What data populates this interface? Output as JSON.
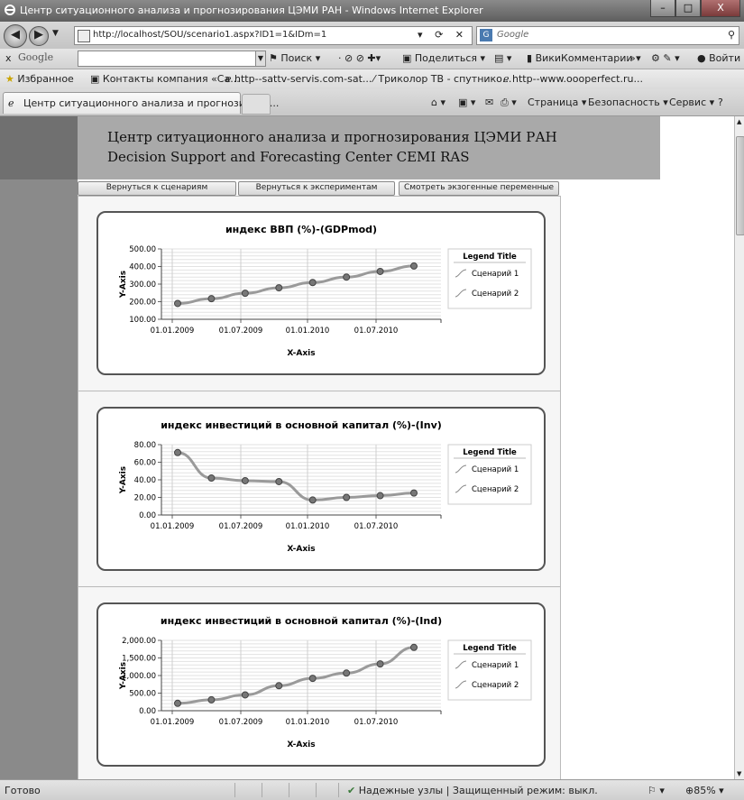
{
  "window": {
    "title": "Центр ситуационного анализа и прогнозирования ЦЭМИ РАН - Windows Internet Explorer",
    "controls": [
      "–",
      "□",
      "X"
    ]
  },
  "address": {
    "url": "http://localhost/SOU/scenario1.aspx?ID1=1&IDm=1",
    "search_placeholder": "Google"
  },
  "google_toolbar": {
    "logo": "Google",
    "search_label": "Поиск",
    "share_label": "Поделиться",
    "wiki_label": "ВикиКомментарии",
    "more_label": "»",
    "signin_label": "Войти"
  },
  "favorites": {
    "label": "Избранное",
    "items": [
      "Контакты компания «Са...",
      "http--sattv-servis.com-sat...",
      "Триколор ТВ - спутнико...",
      "http--www.oooperfect.ru..."
    ]
  },
  "tabs": {
    "active": "Центр ситуационного анализа и прогнозирова...",
    "commands": [
      "Страница",
      "Безопасность",
      "Сервис"
    ]
  },
  "page": {
    "header_line1": "Центр ситуационного анализа и прогнозирования ЦЭМИ РАН",
    "header_line2": "Decision Support and Forecasting Center CEMI RAS",
    "buttons": [
      "Вернуться к сценариям",
      "Вернуться к экспериментам",
      "Смотреть экзогенные переменные"
    ]
  },
  "chart_data": [
    {
      "type": "line",
      "title": "индекс ВВП (%)-(GDPmod)",
      "xlabel": "X-Axis",
      "ylabel": "Y-Axis",
      "x_ticks": [
        "01.01.2009",
        "01.07.2009",
        "01.01.2010",
        "01.07.2010"
      ],
      "y_ticks": [
        "500.00",
        "400.00",
        "300.00",
        "200.00",
        "100.00"
      ],
      "ylim": [
        100,
        500
      ],
      "legend_title": "Legend Title",
      "legend": [
        "Сценарий 1",
        "Сценарий 2"
      ],
      "series": [
        {
          "name": "Сценарий 1",
          "values": [
            190,
            217,
            248,
            279,
            309,
            340,
            372,
            403
          ]
        }
      ]
    },
    {
      "type": "line",
      "title": "индекс инвестиций в основной капитал (%)-(Inv)",
      "xlabel": "X-Axis",
      "ylabel": "Y-Axis",
      "x_ticks": [
        "01.01.2009",
        "01.07.2009",
        "01.01.2010",
        "01.07.2010"
      ],
      "y_ticks": [
        "80.00",
        "60.00",
        "40.00",
        "20.00",
        "0.00"
      ],
      "ylim": [
        0,
        80
      ],
      "legend_title": "Legend Title",
      "legend": [
        "Сценарий 1",
        "Сценарий 2"
      ],
      "series": [
        {
          "name": "Сценарий 1",
          "values": [
            71,
            42,
            39,
            38,
            17,
            20,
            22,
            25
          ]
        }
      ]
    },
    {
      "type": "line",
      "title": "индекс инвестиций в основной капитал (%)-(Ind)",
      "xlabel": "X-Axis",
      "ylabel": "Y-Axis",
      "x_ticks": [
        "01.01.2009",
        "01.07.2009",
        "01.01.2010",
        "01.07.2010"
      ],
      "y_ticks": [
        "2,000.00",
        "1,500.00",
        "1,000.00",
        "500.00",
        "0.00"
      ],
      "ylim": [
        0,
        2000
      ],
      "legend_title": "Legend Title",
      "legend": [
        "Сценарий 1",
        "Сценарий 2"
      ],
      "series": [
        {
          "name": "Сценарий 1",
          "values": [
            210,
            310,
            450,
            710,
            920,
            1070,
            1330,
            1800
          ]
        }
      ]
    }
  ],
  "status": {
    "left": "Готово",
    "zone": "Надежные узлы | Защищенный режим: выкл.",
    "zoom": "85%"
  }
}
